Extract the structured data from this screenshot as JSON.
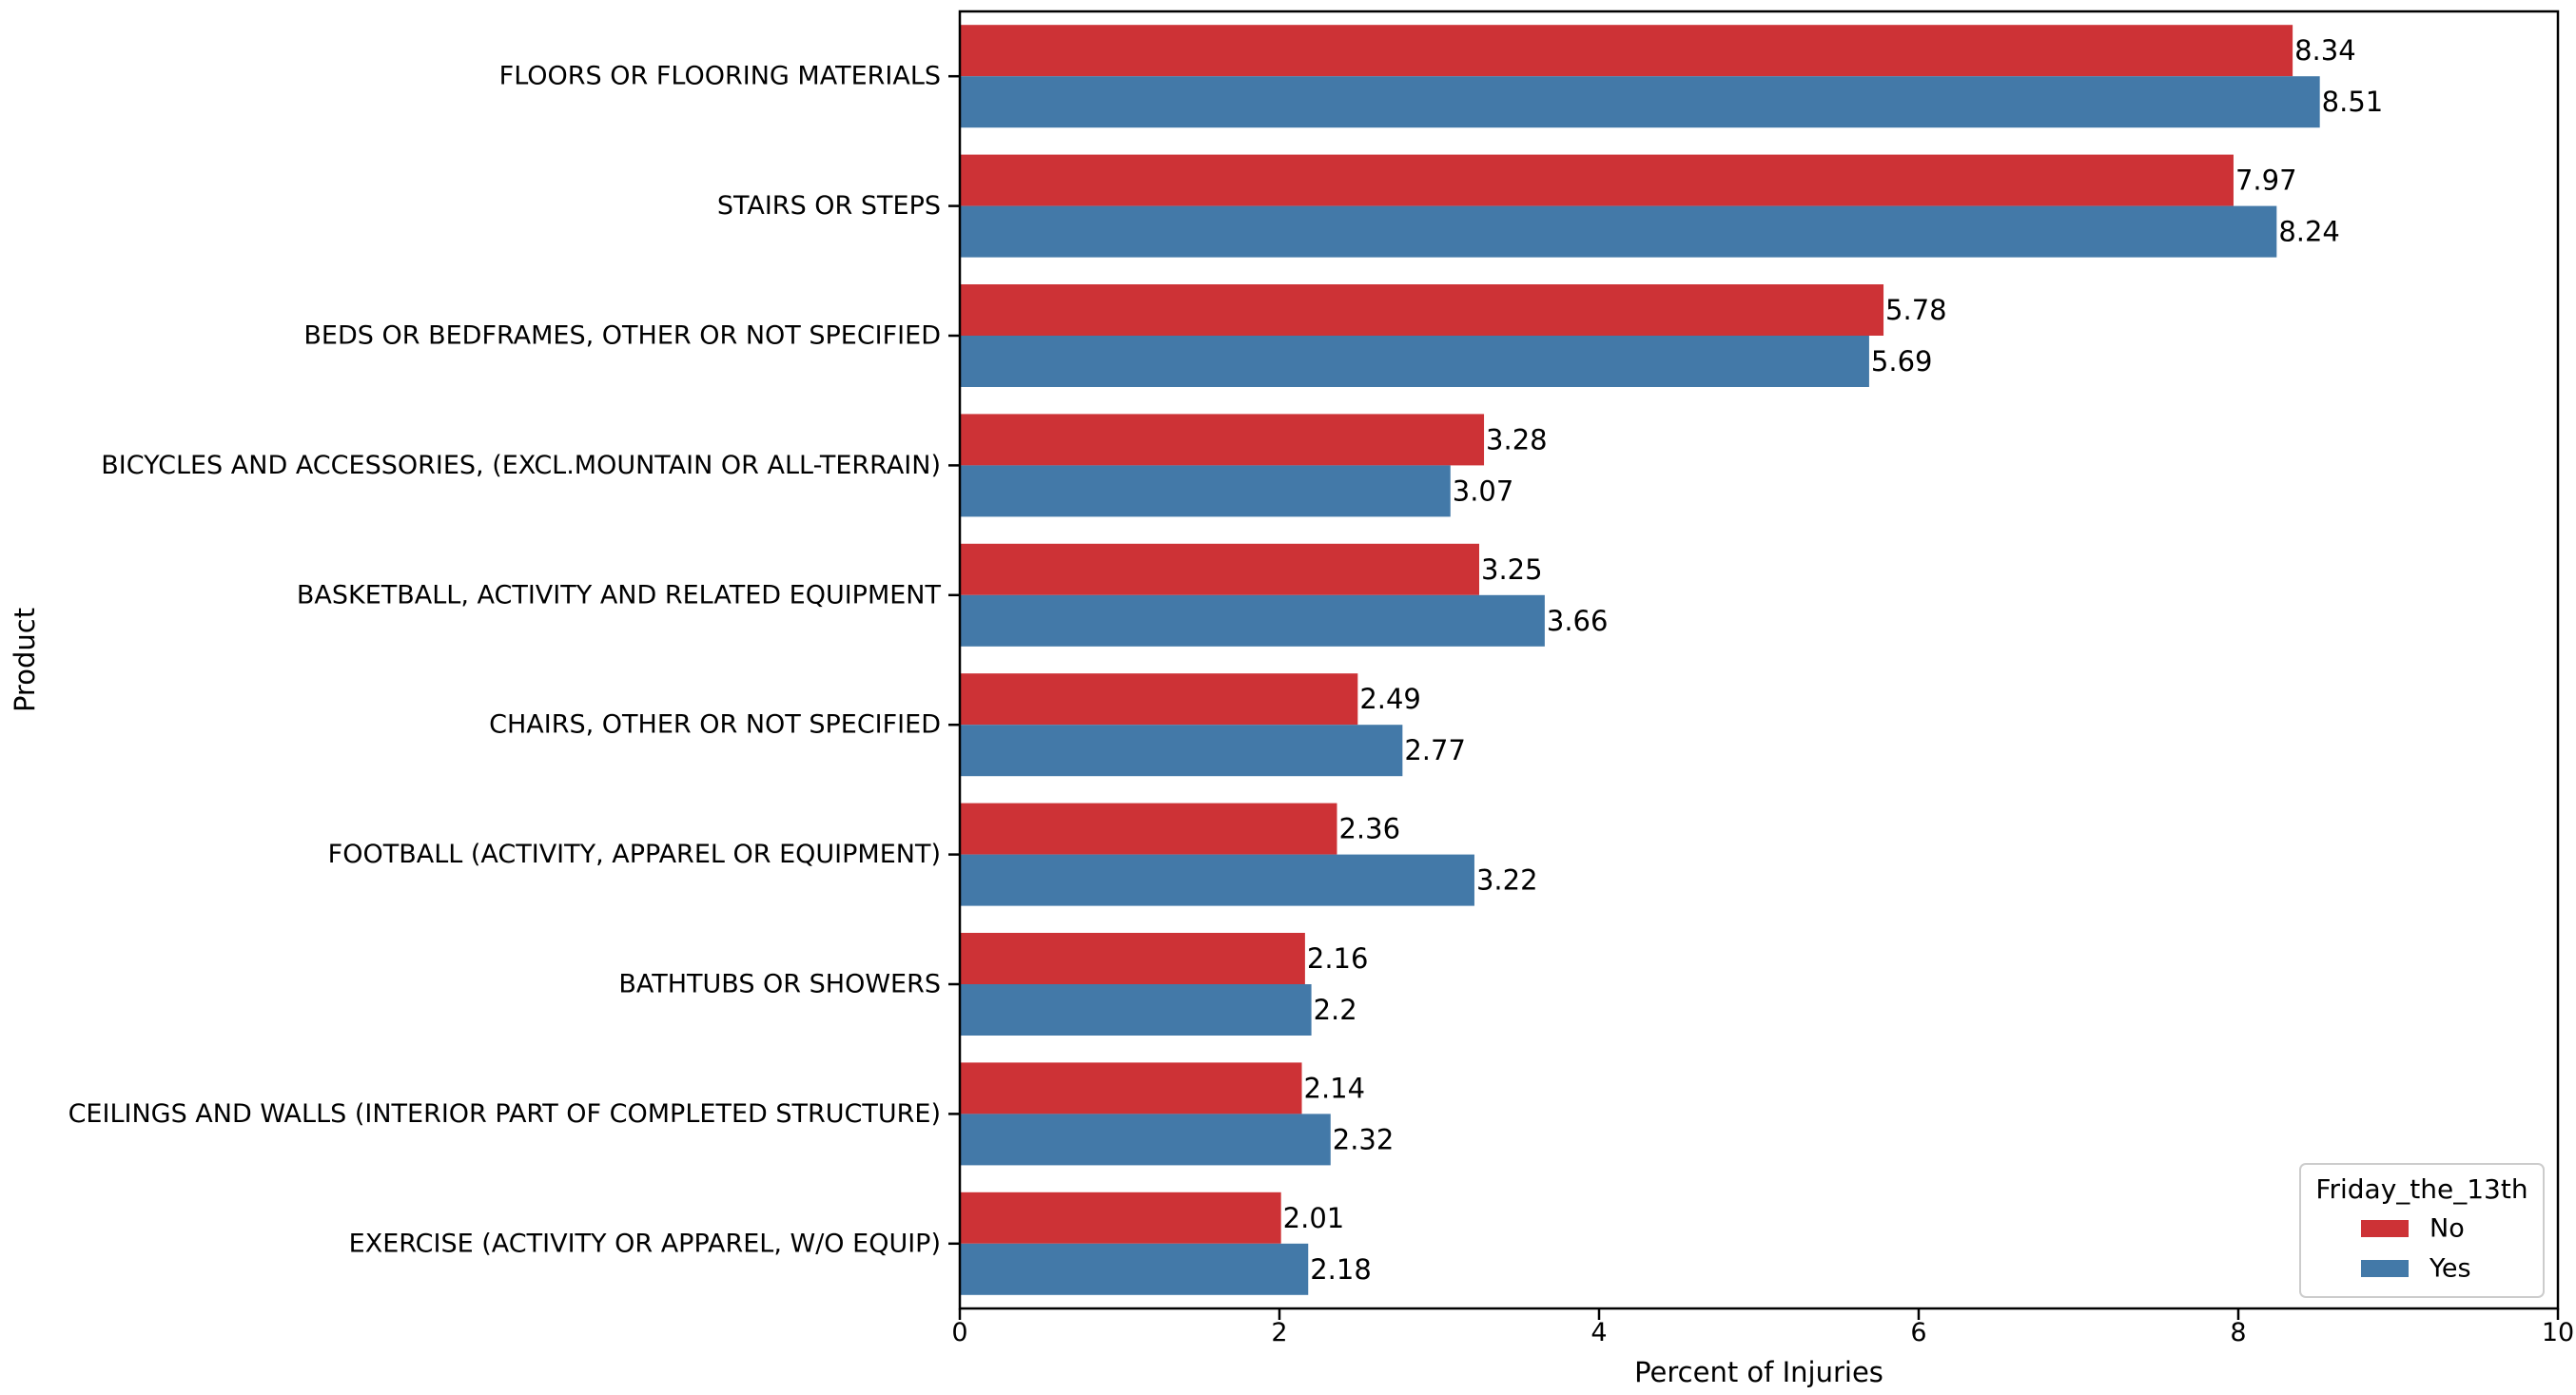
{
  "chart_data": {
    "type": "bar",
    "orientation": "horizontal",
    "xlabel": "Percent of Injuries",
    "ylabel": "Product",
    "xlim": [
      0,
      10
    ],
    "xticks": [
      "0",
      "2",
      "4",
      "6",
      "8",
      "10"
    ],
    "grid": false,
    "legend": {
      "title": "Friday_the_13th",
      "placement": "bottom-right"
    },
    "categories": [
      "FLOORS OR FLOORING MATERIALS",
      "STAIRS OR STEPS",
      "BEDS OR BEDFRAMES, OTHER OR NOT SPECIFIED",
      "BICYCLES AND ACCESSORIES, (EXCL.MOUNTAIN OR ALL-TERRAIN)",
      "BASKETBALL, ACTIVITY AND RELATED EQUIPMENT",
      "CHAIRS, OTHER OR NOT SPECIFIED",
      "FOOTBALL (ACTIVITY, APPAREL OR EQUIPMENT)",
      "BATHTUBS OR SHOWERS",
      "CEILINGS AND WALLS (INTERIOR PART OF COMPLETED STRUCTURE)",
      "EXERCISE (ACTIVITY OR APPAREL, W/O EQUIP)"
    ],
    "series": [
      {
        "name": "No",
        "color": "#cd3236",
        "values": [
          8.34,
          7.97,
          5.78,
          3.28,
          3.25,
          2.49,
          2.36,
          2.16,
          2.14,
          2.01
        ],
        "labels": [
          "8.34",
          "7.97",
          "5.78",
          "3.28",
          "3.25",
          "2.49",
          "2.36",
          "2.16",
          "2.14",
          "2.01"
        ]
      },
      {
        "name": "Yes",
        "color": "#4379a8",
        "values": [
          8.51,
          8.24,
          5.69,
          3.07,
          3.66,
          2.77,
          3.22,
          2.2,
          2.32,
          2.18
        ],
        "labels": [
          "8.51",
          "8.24",
          "5.69",
          "3.07",
          "3.66",
          "2.77",
          "3.22",
          "2.2",
          "2.32",
          "2.18"
        ]
      }
    ]
  }
}
